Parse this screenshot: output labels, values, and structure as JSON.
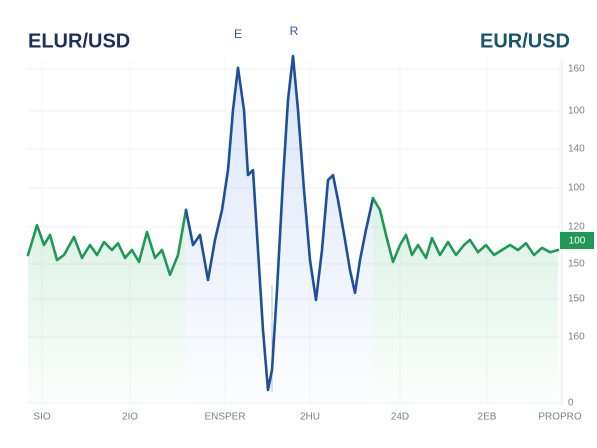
{
  "chart_data": {
    "type": "line",
    "title": "ELUR/USD",
    "title_right": "EUR/USD",
    "annotations": [
      "E",
      "R"
    ],
    "x_labels": [
      "SIO",
      "2IO",
      "ENSPER",
      "2HU",
      "24D",
      "2EB",
      "PROPRO"
    ],
    "y_labels": [
      "160",
      "100",
      "140",
      "100",
      "120",
      "150",
      "150",
      "160",
      "0"
    ],
    "badge": "100",
    "xlim": [
      28,
      560
    ],
    "ylim": [
      0,
      100
    ],
    "segments": [
      {
        "color": "#1f9a55",
        "x": [
          28,
          37,
          44,
          50,
          57,
          64,
          74,
          82,
          90,
          97,
          104,
          112,
          118,
          125,
          132,
          139,
          147,
          155,
          162,
          170,
          178,
          186
        ],
        "values": [
          41.1,
          49.4,
          43.9,
          46.7,
          39.7,
          41.1,
          46.1,
          40.3,
          43.9,
          41.1,
          44.7,
          42.5,
          44.4,
          40.3,
          42.5,
          39.2,
          47.5,
          40.3,
          42.5,
          35.6,
          41.1,
          53.6
        ]
      },
      {
        "color": "#1f4f9a",
        "x": [
          186,
          193,
          200,
          208,
          215,
          222,
          228,
          233,
          238,
          244,
          248,
          253,
          258,
          263,
          268,
          272,
          277,
          283,
          288,
          293,
          298,
          304,
          310,
          316,
          322,
          328,
          333,
          338,
          345,
          350,
          355,
          360,
          366,
          373
        ],
        "values": [
          53.6,
          43.9,
          46.7,
          34.2,
          45.3,
          53.6,
          64.7,
          81.4,
          93.1,
          81.4,
          63.3,
          64.7,
          42.5,
          20.3,
          3.6,
          9.2,
          31.4,
          61.9,
          84.2,
          96.4,
          81.4,
          59.2,
          39.7,
          28.6,
          42.5,
          61.9,
          63.3,
          56.4,
          45.3,
          36.9,
          30.6,
          39.7,
          48.1,
          56.9
        ]
      },
      {
        "color": "#1f9a55",
        "x": [
          373,
          380,
          386,
          393,
          400,
          406,
          412,
          418,
          426,
          432,
          440,
          448,
          456,
          464,
          470,
          478,
          486,
          494,
          502,
          510,
          518,
          526,
          534,
          542,
          550,
          558
        ],
        "values": [
          56.9,
          53.6,
          46.7,
          39.2,
          43.9,
          46.7,
          41.1,
          43.9,
          40.3,
          45.8,
          41.1,
          44.7,
          41.1,
          43.9,
          45.3,
          41.9,
          43.9,
          41.1,
          42.5,
          43.9,
          42.5,
          44.4,
          41.1,
          43.1,
          41.9,
          42.5
        ]
      }
    ]
  }
}
